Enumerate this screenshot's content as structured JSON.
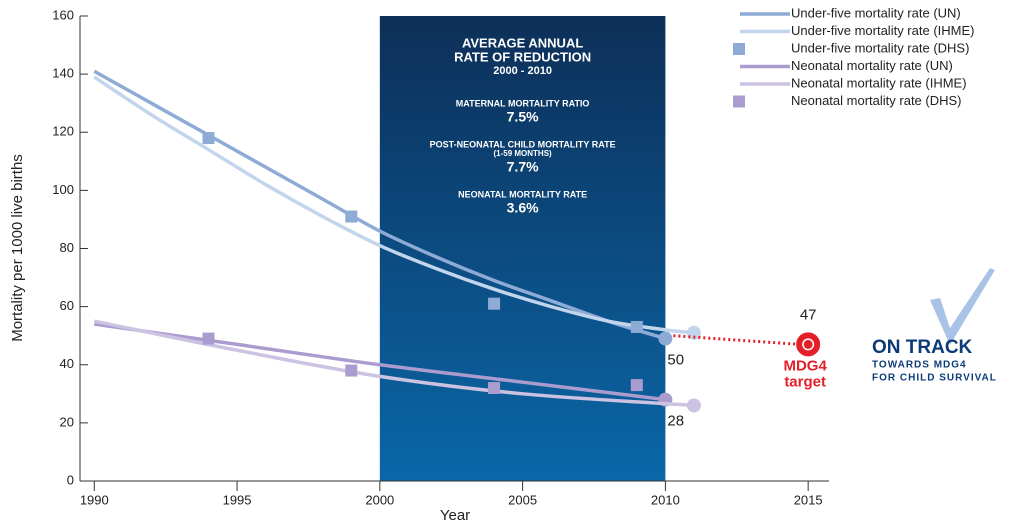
{
  "chart_data": {
    "type": "line",
    "x_label": "Year",
    "y_label": "Mortality per 1000 live births",
    "xlim": [
      1989.5,
      2016.5
    ],
    "ylim": [
      0,
      160
    ],
    "xticks": [
      1990,
      1995,
      2000,
      2005,
      2010,
      2015
    ],
    "yticks": [
      0,
      20,
      40,
      60,
      80,
      100,
      120,
      140,
      160
    ],
    "series": [
      {
        "name": "Under-five mortality rate (UN)",
        "color": "#8eabd6",
        "mode": "line",
        "x": [
          1990,
          1992,
          1994,
          1996,
          1998,
          2000,
          2002,
          2004,
          2006,
          2008,
          2010
        ],
        "values": [
          141,
          130,
          119,
          108,
          97,
          86,
          77,
          69,
          62,
          55,
          49
        ]
      },
      {
        "name": "Under-five mortality rate (IHME)",
        "color": "#c3d5ec",
        "mode": "line",
        "x": [
          1990,
          1992,
          1994,
          1996,
          1998,
          2000,
          2002,
          2004,
          2006,
          2008,
          2010,
          2011
        ],
        "values": [
          139,
          126,
          114,
          102,
          91,
          81,
          73,
          66,
          60,
          55,
          52,
          51
        ]
      },
      {
        "name": "Under-five mortality rate (DHS)",
        "color": "#8eabd6",
        "mode": "markers",
        "x": [
          1994,
          1999,
          2004,
          2009
        ],
        "values": [
          118,
          91,
          61,
          53
        ]
      },
      {
        "name": "Neonatal mortality rate (UN)",
        "color": "#ab9ccf",
        "mode": "line",
        "x": [
          1990,
          1995,
          2000,
          2005,
          2010
        ],
        "values": [
          54,
          47,
          40,
          34,
          28
        ]
      },
      {
        "name": "Neonatal mortality rate (IHME)",
        "color": "#ccc2e2",
        "mode": "line",
        "x": [
          1990,
          1995,
          2000,
          2005,
          2011
        ],
        "values": [
          55,
          45,
          36,
          30,
          26
        ]
      },
      {
        "name": "Neonatal mortality rate (DHS)",
        "color": "#ab9ccf",
        "mode": "markers",
        "x": [
          1994,
          1999,
          2004,
          2009
        ],
        "values": [
          49,
          38,
          32,
          33
        ]
      }
    ],
    "highlight": {
      "x_range": [
        2000,
        2010
      ],
      "title_lines": [
        "AVERAGE ANNUAL",
        "RATE OF REDUCTION",
        "2000 - 2010"
      ],
      "items": [
        {
          "label": [
            "MATERNAL MORTALITY RATIO"
          ],
          "value": "7.5%"
        },
        {
          "label": [
            "POST-NEONATAL CHILD MORTALITY RATE",
            "(1-59 MONTHS)"
          ],
          "value": "7.7%"
        },
        {
          "label": [
            "NEONATAL MORTALITY RATE"
          ],
          "value": "3.6%"
        }
      ]
    },
    "annotations": [
      "50",
      "28"
    ],
    "target": {
      "x": 2015,
      "value": 47,
      "from_x": 2010,
      "from_value": 50,
      "label": [
        "MDG4",
        "target"
      ],
      "color": "#e3202a"
    },
    "badge": [
      "ON TRACK",
      "TOWARDS MDG4",
      "FOR CHILD SURVIVAL"
    ]
  }
}
